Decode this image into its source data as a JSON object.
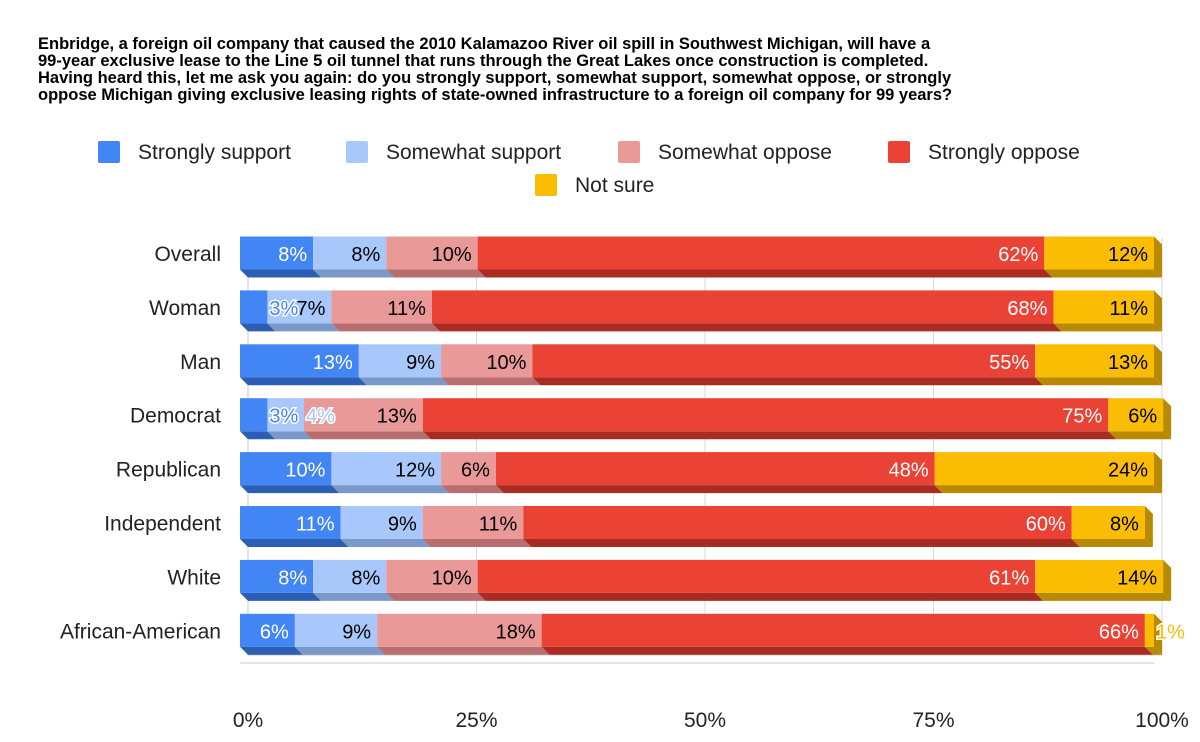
{
  "chart_data": {
    "type": "bar",
    "orientation": "horizontal",
    "stacked": true,
    "style": "3d",
    "title": "Enbridge, a foreign oil company that caused the 2010 Kalamazoo River oil spill in Southwest Michigan, will have a 99-year exclusive lease to the Line 5 oil tunnel that runs through the Great Lakes once construction is completed. Having heard this, let me ask you again: do you strongly support, somewhat support, somewhat oppose, or strongly oppose Michigan giving exclusive leasing rights of state-owned infrastructure to a foreign oil company for 99 years?",
    "title_lines": [
      "Enbridge, a foreign oil company that caused the 2010 Kalamazoo River oil spill in Southwest Michigan, will have a",
      "99-year exclusive lease to the Line 5 oil tunnel that runs through the Great Lakes once construction is completed.",
      "Having heard this, let me ask you again: do you strongly support, somewhat support, somewhat oppose, or strongly",
      "oppose Michigan giving exclusive leasing rights of state-owned infrastructure to a foreign oil company for 99 years?"
    ],
    "categories": [
      "Overall",
      "Woman",
      "Man",
      "Democrat",
      "Republican",
      "Independent",
      "White",
      "African-American"
    ],
    "series": [
      {
        "name": "Strongly support",
        "color": "#4285f4",
        "side": "#2c5fb4",
        "label_color": "#ffffff",
        "values": [
          8,
          3,
          13,
          3,
          10,
          11,
          8,
          6
        ]
      },
      {
        "name": "Somewhat support",
        "color": "#a8c7fa",
        "side": "#7a98c8",
        "label_color": "#000000",
        "values": [
          8,
          7,
          9,
          4,
          12,
          9,
          8,
          9
        ]
      },
      {
        "name": "Somewhat oppose",
        "color": "#ea9999",
        "side": "#b86e6e",
        "label_color": "#000000",
        "values": [
          10,
          11,
          10,
          13,
          6,
          11,
          10,
          18
        ]
      },
      {
        "name": "Strongly oppose",
        "color": "#ea4335",
        "side": "#a82c22",
        "label_color": "#ffffff",
        "values": [
          62,
          68,
          55,
          75,
          48,
          60,
          61,
          66
        ]
      },
      {
        "name": "Not sure",
        "color": "#fbbc04",
        "side": "#b88a02",
        "label_color": "#000000",
        "values": [
          12,
          11,
          13,
          6,
          24,
          8,
          14,
          1
        ]
      }
    ],
    "value_suffix": "%",
    "x_axis": {
      "min": 0,
      "max": 100,
      "ticks": [
        "0%",
        "25%",
        "50%",
        "75%",
        "100%"
      ]
    },
    "xlim": [
      0,
      100
    ],
    "grid": true,
    "legend_position": "top"
  }
}
